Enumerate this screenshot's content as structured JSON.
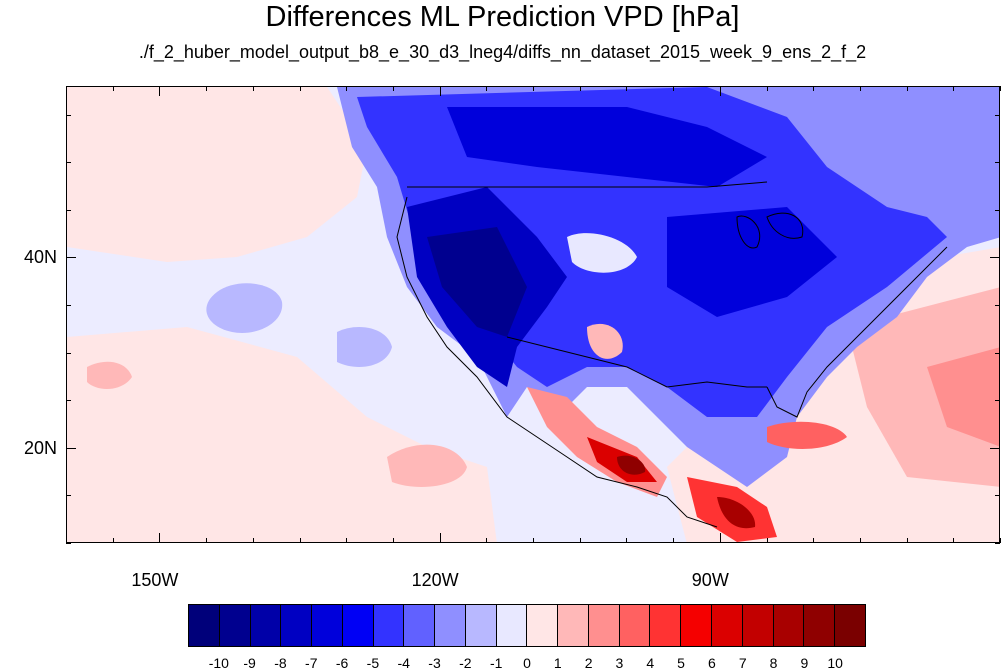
{
  "title": "Differences ML Prediction VPD [hPa]",
  "subtitle": "./f_2_huber_model_output_b8_e_30_d3_lneg4/diffs_nn_dataset_2015_week_9_ens_2_f_2",
  "map": {
    "lon_range": [
      -160,
      -60
    ],
    "lat_range": [
      10,
      58
    ],
    "lon_ticks": [
      {
        "value": -150,
        "label": "150W"
      },
      {
        "value": -120,
        "label": "120W"
      },
      {
        "value": -90,
        "label": "90W"
      }
    ],
    "lat_ticks": [
      {
        "value": 40,
        "label": "40N"
      },
      {
        "value": 20,
        "label": "20N"
      }
    ]
  },
  "colorbar": {
    "labels": [
      "-10",
      "-9",
      "-8",
      "-7",
      "-6",
      "-5",
      "-4",
      "-3",
      "-2",
      "-1",
      "0",
      "1",
      "2",
      "3",
      "4",
      "5",
      "6",
      "7",
      "8",
      "9",
      "10"
    ],
    "colors": [
      "#00007a",
      "#00008f",
      "#0000a8",
      "#0000c2",
      "#0000db",
      "#0000f5",
      "#3333ff",
      "#6161ff",
      "#8f8fff",
      "#b8b8ff",
      "#e8e8ff",
      "#ffe6e6",
      "#ffb8b8",
      "#ff8f8f",
      "#ff6161",
      "#ff3333",
      "#f50000",
      "#db0000",
      "#c20000",
      "#a80000",
      "#8f0000",
      "#7a0000"
    ]
  }
}
